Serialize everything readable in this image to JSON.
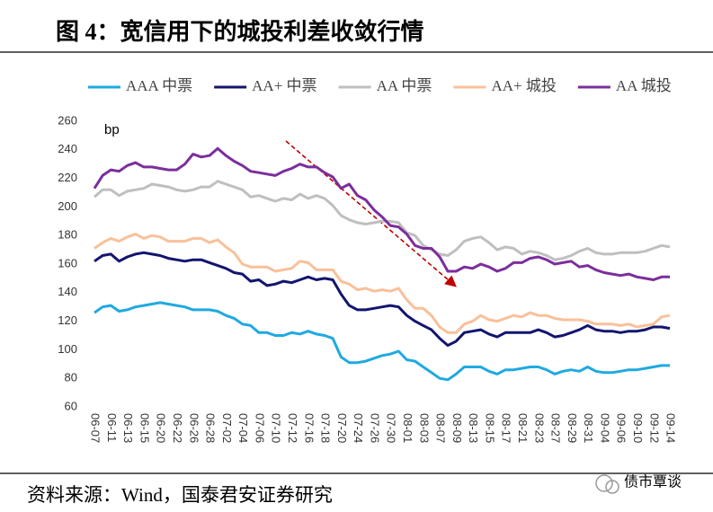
{
  "chart_data": {
    "type": "line",
    "title": "图 4：宽信用下的城投利差收敛行情",
    "y_unit": "bp",
    "source": "资料来源：Wind，国泰君安证券研究",
    "watermark": "债市覃谈",
    "ylim": [
      60,
      260
    ],
    "yticks": [
      60,
      80,
      100,
      120,
      140,
      160,
      180,
      200,
      220,
      240,
      260
    ],
    "grid": false,
    "legend": "top",
    "categories": [
      "06-07",
      null,
      "06-11",
      null,
      "06-13",
      null,
      "06-15",
      null,
      "06-20",
      null,
      "06-22",
      null,
      "06-26",
      null,
      "06-28",
      null,
      "07-02",
      null,
      "07-04",
      null,
      "07-06",
      null,
      "07-10",
      null,
      "07-12",
      null,
      "07-16",
      null,
      "07-18",
      null,
      "07-20",
      null,
      "07-24",
      null,
      "07-26",
      null,
      "07-30",
      null,
      "08-01",
      null,
      "08-03",
      null,
      "08-07",
      null,
      "08-09",
      null,
      "08-13",
      null,
      "08-15",
      null,
      "08-17",
      null,
      "08-21",
      null,
      "08-23",
      null,
      "08-27",
      null,
      "08-29",
      null,
      "08-31",
      null,
      "09-04",
      null,
      "09-06",
      null,
      "09-10",
      null,
      "09-12",
      null,
      "09-14"
    ],
    "series": [
      {
        "name": "AAA 中票",
        "color": "#1fa9e1",
        "values": [
          126,
          130,
          131,
          127,
          128,
          130,
          131,
          132,
          133,
          132,
          131,
          130,
          128,
          128,
          128,
          127,
          124,
          122,
          118,
          117,
          112,
          112,
          110,
          110,
          112,
          111,
          113,
          111,
          110,
          108,
          95,
          91,
          91,
          92,
          94,
          96,
          97,
          99,
          93,
          92,
          88,
          84,
          80,
          79,
          83,
          88,
          88,
          88,
          85,
          83,
          86,
          86,
          87,
          88,
          88,
          86,
          83,
          85,
          86,
          85,
          88,
          85,
          84,
          84,
          85,
          86,
          86,
          87,
          88,
          89,
          89
        ]
      },
      {
        "name": "AA+ 中票",
        "color": "#12156e",
        "values": [
          162,
          166,
          167,
          162,
          165,
          167,
          168,
          167,
          166,
          164,
          163,
          162,
          163,
          163,
          161,
          159,
          157,
          154,
          153,
          148,
          149,
          145,
          146,
          148,
          147,
          149,
          151,
          149,
          150,
          149,
          139,
          131,
          128,
          128,
          129,
          130,
          131,
          130,
          124,
          120,
          117,
          114,
          108,
          103,
          106,
          112,
          113,
          114,
          111,
          109,
          112,
          112,
          112,
          112,
          114,
          112,
          109,
          110,
          112,
          114,
          117,
          114,
          113,
          113,
          112,
          113,
          113,
          114,
          116,
          116,
          115
        ]
      },
      {
        "name": "AA 中票",
        "color": "#bfbfbf",
        "values": [
          207,
          212,
          212,
          208,
          211,
          212,
          213,
          216,
          215,
          214,
          212,
          211,
          212,
          214,
          214,
          218,
          216,
          214,
          212,
          207,
          208,
          206,
          204,
          206,
          205,
          209,
          206,
          208,
          206,
          201,
          194,
          191,
          189,
          188,
          189,
          190,
          190,
          189,
          182,
          180,
          173,
          170,
          167,
          166,
          170,
          176,
          178,
          179,
          175,
          170,
          172,
          171,
          167,
          169,
          168,
          166,
          163,
          164,
          166,
          169,
          171,
          168,
          167,
          167,
          168,
          168,
          168,
          169,
          171,
          173,
          172
        ]
      },
      {
        "name": "AA+ 城投",
        "color": "#f9c09a",
        "values": [
          171,
          175,
          178,
          176,
          179,
          181,
          178,
          180,
          179,
          176,
          176,
          176,
          178,
          178,
          175,
          177,
          172,
          168,
          160,
          158,
          158,
          158,
          155,
          156,
          157,
          162,
          161,
          156,
          156,
          156,
          148,
          146,
          142,
          143,
          141,
          142,
          141,
          143,
          135,
          129,
          129,
          124,
          116,
          112,
          112,
          118,
          120,
          124,
          121,
          120,
          122,
          124,
          123,
          126,
          124,
          124,
          122,
          121,
          121,
          121,
          120,
          118,
          118,
          118,
          117,
          118,
          116,
          117,
          118,
          123,
          124
        ]
      },
      {
        "name": "AA 城投",
        "color": "#7b2e9c",
        "values": [
          213,
          222,
          226,
          225,
          229,
          231,
          228,
          228,
          227,
          226,
          226,
          230,
          237,
          235,
          236,
          241,
          236,
          232,
          229,
          225,
          224,
          223,
          222,
          225,
          227,
          230,
          228,
          228,
          224,
          221,
          213,
          216,
          208,
          205,
          198,
          193,
          187,
          186,
          181,
          173,
          171,
          171,
          165,
          155,
          155,
          158,
          157,
          160,
          158,
          155,
          157,
          161,
          161,
          164,
          165,
          163,
          160,
          161,
          162,
          158,
          159,
          156,
          154,
          153,
          152,
          153,
          151,
          150,
          149,
          151,
          151
        ]
      }
    ]
  }
}
